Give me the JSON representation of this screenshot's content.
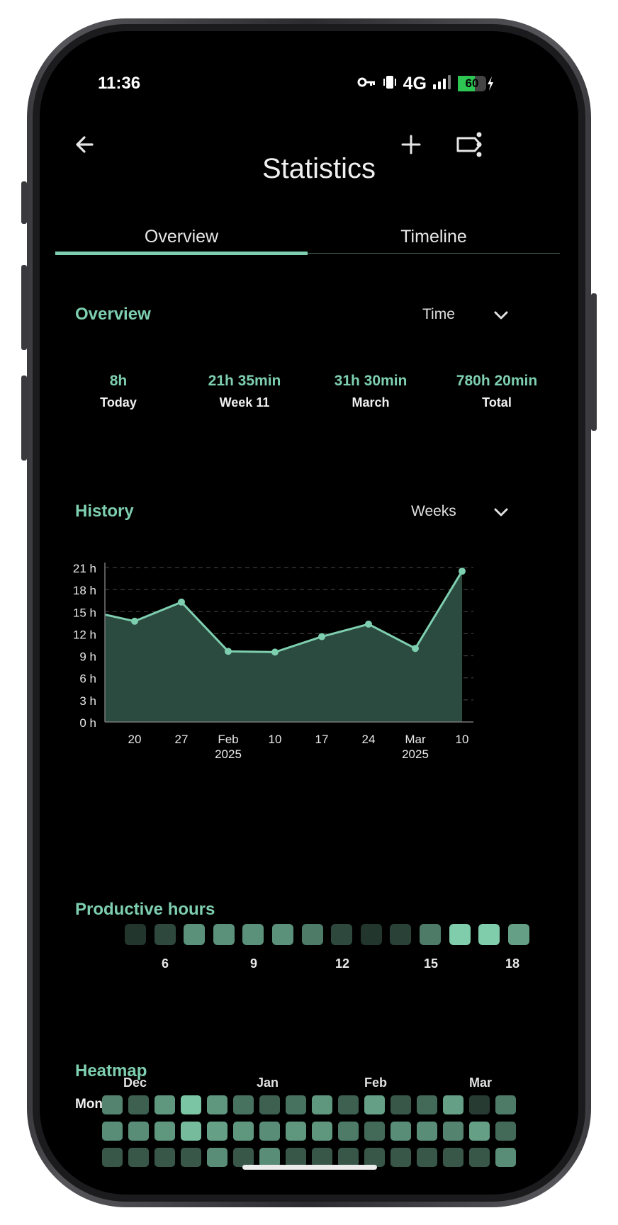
{
  "status_bar": {
    "time": "11:36",
    "network": "4G",
    "battery": "60"
  },
  "app_bar": {
    "title": "Statistics"
  },
  "tabs": [
    {
      "label": "Overview",
      "selected": true
    },
    {
      "label": "Timeline",
      "selected": false
    }
  ],
  "overview": {
    "title": "Overview",
    "dropdown": "Time",
    "stats": [
      {
        "value": "8h",
        "label": "Today"
      },
      {
        "value": "21h 35min",
        "label": "Week 11"
      },
      {
        "value": "31h 30min",
        "label": "March"
      },
      {
        "value": "780h 20min",
        "label": "Total"
      }
    ]
  },
  "history": {
    "title": "History",
    "dropdown": "Weeks"
  },
  "chart_data": {
    "type": "area",
    "x_labels": [
      "20",
      "27",
      "Feb\n2025",
      "10",
      "17",
      "24",
      "Mar\n2025",
      "10"
    ],
    "x_label_lines": [
      [
        "20"
      ],
      [
        "27"
      ],
      [
        "Feb",
        "2025"
      ],
      [
        "10"
      ],
      [
        "17"
      ],
      [
        "24"
      ],
      [
        "Mar",
        "2025"
      ],
      [
        "10"
      ]
    ],
    "values": [
      14.6,
      13.7,
      16.3,
      9.6,
      9.5,
      11.6,
      13.3,
      10.0,
      20.5
    ],
    "point_indexes": [
      1,
      2,
      3,
      4,
      5,
      6,
      7,
      8
    ],
    "y_ticks": [
      "0 h",
      "3 h",
      "6 h",
      "9 h",
      "12 h",
      "15 h",
      "18 h",
      "21 h"
    ],
    "ylim": [
      0,
      21
    ],
    "grid": true,
    "colors": {
      "line": "#7ecfb0",
      "fill": "#2b4a40",
      "grid": "#4a4a4a",
      "axis": "#777777"
    }
  },
  "productive_hours": {
    "title": "Productive hours",
    "levels": [
      0.12,
      0.22,
      0.62,
      0.62,
      0.62,
      0.62,
      0.5,
      0.22,
      0.12,
      0.18,
      0.5,
      0.95,
      0.95,
      0.7
    ],
    "labels": [
      "6",
      "9",
      "12",
      "15",
      "18"
    ]
  },
  "heatmap": {
    "title": "Heatmap",
    "months": [
      "Dec",
      "Jan",
      "Feb",
      "Mar"
    ],
    "row_label": "Mon",
    "rows": [
      [
        0.55,
        0.35,
        0.65,
        0.9,
        0.65,
        0.45,
        0.35,
        0.45,
        0.65,
        0.35,
        0.7,
        0.3,
        0.4,
        0.7,
        0.15,
        0.5
      ],
      [
        0.6,
        0.6,
        0.65,
        0.85,
        0.7,
        0.65,
        0.6,
        0.65,
        0.65,
        0.5,
        0.4,
        0.6,
        0.6,
        0.55,
        0.7,
        0.4
      ],
      [
        0.3,
        0.3,
        0.3,
        0.3,
        0.6,
        0.3,
        0.6,
        0.3,
        0.3,
        0.3,
        0.3,
        0.3,
        0.3,
        0.3,
        0.3,
        0.6
      ]
    ]
  },
  "colors": {
    "accent": "#7ecfb0",
    "background": "#000000"
  }
}
